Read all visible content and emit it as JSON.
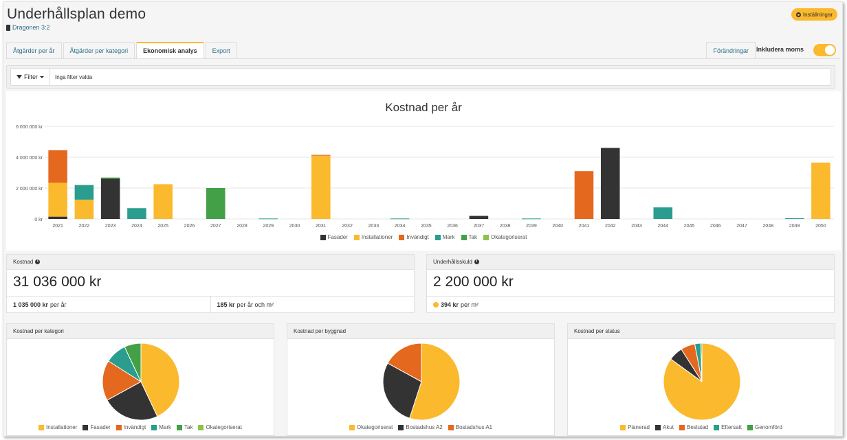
{
  "header": {
    "title": "Underhållsplan demo",
    "property": "Dragonen 3:2",
    "settings_label": "Inställningar"
  },
  "tabs": [
    {
      "label": "Åtgärder per år"
    },
    {
      "label": "Åtgärder per kategori"
    },
    {
      "label": "Ekonomisk analys",
      "active": true
    },
    {
      "label": "Export"
    }
  ],
  "changes_label": "Förändringar",
  "vat_toggle": {
    "label": "Inkludera moms",
    "on": true
  },
  "filter": {
    "button_label": "Filter",
    "text": "Inga filter valda"
  },
  "colors": {
    "Fasader": "#333333",
    "Installationer": "#fbb92e",
    "Invändigt": "#e4681e",
    "Mark": "#2a9d8f",
    "Tak": "#43a047",
    "Okategoriserat": "#8bc34a"
  },
  "chart_data": {
    "type": "bar",
    "stacked": true,
    "title": "Kostnad per år",
    "xlabel": "",
    "ylabel": "",
    "ylim": [
      0,
      6000000
    ],
    "yticks": [
      0,
      2000000,
      4000000,
      6000000
    ],
    "ytick_labels": [
      "0 kr",
      "2 000 000 kr",
      "4 000 000 kr",
      "6 000 000 kr"
    ],
    "grid": true,
    "legend_position": "bottom",
    "categories": [
      "2021",
      "2022",
      "2023",
      "2024",
      "2025",
      "2026",
      "2027",
      "2028",
      "2029",
      "2030",
      "2031",
      "2032",
      "2033",
      "2034",
      "2035",
      "2036",
      "2037",
      "2038",
      "2039",
      "2040",
      "2041",
      "2042",
      "2043",
      "2044",
      "2045",
      "2046",
      "2047",
      "2048",
      "2049",
      "2050"
    ],
    "series": [
      {
        "name": "Fasader",
        "values": [
          150000,
          0,
          2600000,
          0,
          0,
          0,
          0,
          0,
          0,
          0,
          0,
          0,
          0,
          0,
          0,
          0,
          200000,
          0,
          0,
          0,
          0,
          4600000,
          0,
          0,
          0,
          0,
          0,
          0,
          0,
          0
        ]
      },
      {
        "name": "Installationer",
        "values": [
          2200000,
          1250000,
          0,
          0,
          2250000,
          0,
          0,
          0,
          0,
          0,
          4100000,
          0,
          0,
          0,
          0,
          0,
          0,
          0,
          0,
          0,
          0,
          0,
          0,
          0,
          0,
          0,
          0,
          0,
          0,
          3650000
        ]
      },
      {
        "name": "Invändigt",
        "values": [
          2100000,
          0,
          0,
          0,
          0,
          0,
          0,
          0,
          0,
          0,
          50000,
          0,
          0,
          0,
          0,
          0,
          0,
          0,
          0,
          0,
          3100000,
          0,
          0,
          0,
          0,
          0,
          0,
          0,
          0,
          0
        ]
      },
      {
        "name": "Mark",
        "values": [
          0,
          950000,
          0,
          700000,
          0,
          0,
          0,
          0,
          30000,
          0,
          0,
          0,
          0,
          30000,
          0,
          0,
          0,
          0,
          30000,
          0,
          0,
          0,
          0,
          750000,
          0,
          0,
          0,
          0,
          50000,
          0
        ]
      },
      {
        "name": "Tak",
        "values": [
          0,
          0,
          80000,
          0,
          0,
          0,
          2000000,
          0,
          0,
          0,
          0,
          0,
          0,
          0,
          0,
          0,
          0,
          0,
          0,
          0,
          0,
          0,
          0,
          0,
          0,
          0,
          0,
          0,
          0,
          0
        ]
      },
      {
        "name": "Okategoriserat",
        "values": [
          0,
          0,
          0,
          0,
          0,
          0,
          0,
          0,
          0,
          0,
          0,
          0,
          0,
          0,
          0,
          0,
          0,
          0,
          0,
          0,
          0,
          0,
          0,
          0,
          0,
          0,
          0,
          0,
          0,
          0
        ]
      }
    ]
  },
  "kpi_cost": {
    "label": "Kostnad",
    "value": "31 036 000 kr",
    "per_year_value": "1 035 000 kr",
    "per_year_unit": "per år",
    "per_sqm_value": "185 kr",
    "per_sqm_unit": "per år och m²"
  },
  "kpi_debt": {
    "label": "Underhållsskuld",
    "value": "2 200 000 kr",
    "per_sqm_value": "394 kr",
    "per_sqm_unit": "per m²"
  },
  "pies": [
    {
      "title": "Kostnad per kategori",
      "type": "pie",
      "slices": [
        {
          "name": "Installationer",
          "value": 43,
          "color": "#fbb92e"
        },
        {
          "name": "Fasader",
          "value": 24,
          "color": "#333333"
        },
        {
          "name": "Invändigt",
          "value": 17,
          "color": "#e4681e"
        },
        {
          "name": "Mark",
          "value": 9,
          "color": "#2a9d8f"
        },
        {
          "name": "Tak",
          "value": 7,
          "color": "#43a047"
        },
        {
          "name": "Okategoriserat",
          "value": 0,
          "color": "#8bc34a"
        }
      ]
    },
    {
      "title": "Kostnad per byggnad",
      "type": "pie",
      "slices": [
        {
          "name": "Okategoriserat",
          "value": 55,
          "color": "#fbb92e"
        },
        {
          "name": "Bostadshus A2",
          "value": 28,
          "color": "#333333"
        },
        {
          "name": "Bostadshus A1",
          "value": 17,
          "color": "#e4681e"
        }
      ]
    },
    {
      "title": "Kostnad per status",
      "type": "pie",
      "slices": [
        {
          "name": "Planerad",
          "value": 85,
          "color": "#fbb92e"
        },
        {
          "name": "Akut",
          "value": 6,
          "color": "#333333"
        },
        {
          "name": "Beslutad",
          "value": 6,
          "color": "#e4681e"
        },
        {
          "name": "Eftersatt",
          "value": 2.5,
          "color": "#2a9d8f"
        },
        {
          "name": "Genomförd",
          "value": 0.5,
          "color": "#43a047"
        }
      ]
    }
  ]
}
